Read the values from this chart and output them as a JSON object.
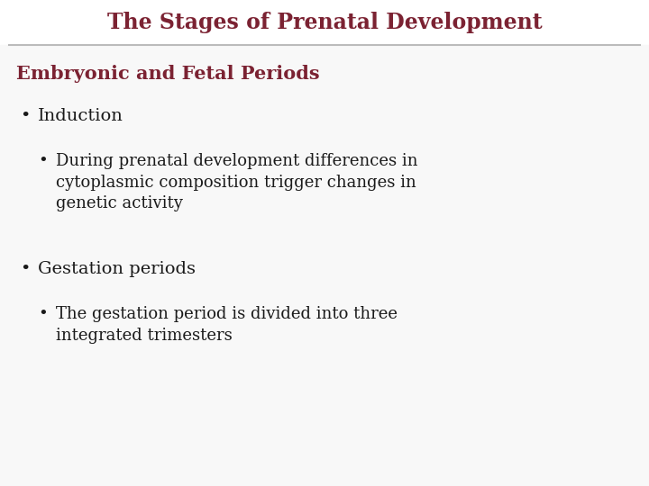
{
  "title": "The Stages of Prenatal Development",
  "title_color": "#7B2232",
  "title_fontsize": 17,
  "subtitle": "Embryonic and Fetal Periods",
  "subtitle_color": "#7B2232",
  "subtitle_fontsize": 15,
  "background_color": "#FFFFFF",
  "title_bg_color": "#FFFFFF",
  "body_bg_color": "#F8F8F8",
  "line_color": "#BBBBBB",
  "bullet_color": "#1A1A1A",
  "bullet_fontsize": 14,
  "sub_bullet_fontsize": 13,
  "bullets": [
    {
      "level": 1,
      "text": "Induction"
    },
    {
      "level": 2,
      "text": "During prenatal development differences in\ncytoplasmic composition trigger changes in\ngenetic activity"
    },
    {
      "level": 1,
      "text": "Gestation periods"
    },
    {
      "level": 2,
      "text": "The gestation period is divided into three\nintegrated trimesters"
    }
  ]
}
